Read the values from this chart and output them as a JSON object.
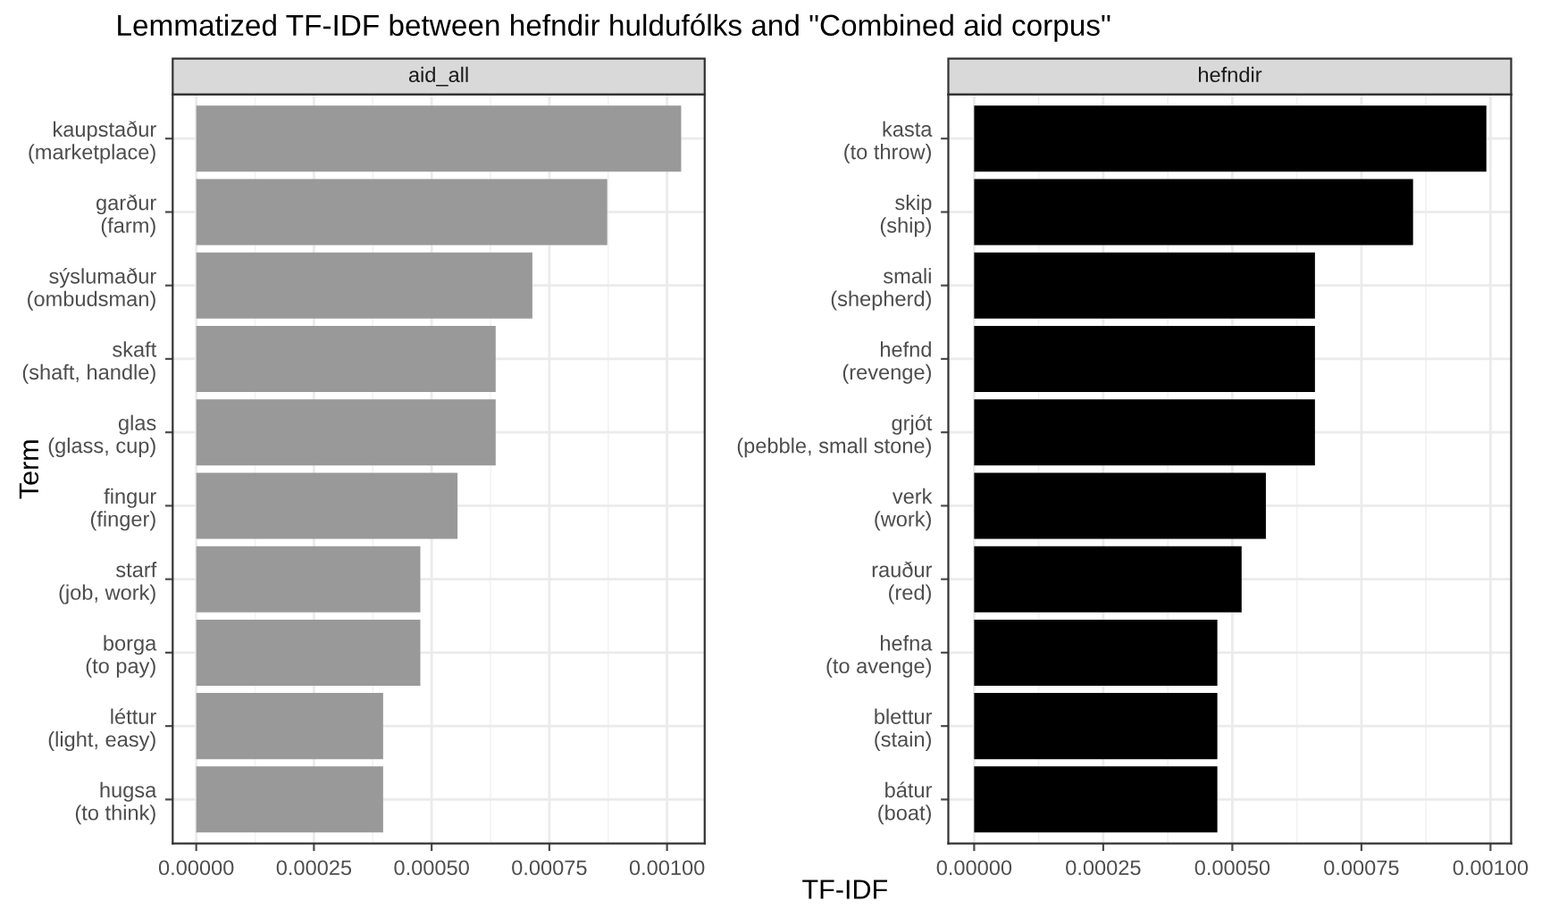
{
  "chart_data": [
    {
      "type": "bar",
      "orientation": "horizontal",
      "title": "aid_all",
      "xlabel": "TF-IDF",
      "ylabel": "Term",
      "annotations": [
        "Lemmatized TF-IDF between hefndir huldufólks and \"Combined aid corpus\""
      ],
      "categories": [
        "kaupstaður\n(marketplace)",
        "garður\n(farm)",
        "sýslumaður\n(ombudsman)",
        "skaft\n(shaft, handle)",
        "glas\n(glass, cup)",
        "fingur\n(finger)",
        "starf\n(job, work)",
        "borga\n(to pay)",
        "léttur\n(light, easy)",
        "hugsa\n(to think)"
      ],
      "values": [
        0.00103,
        0.000873,
        0.000714,
        0.000636,
        0.000636,
        0.000555,
        0.000476,
        0.000476,
        0.000397,
        0.000397
      ],
      "color": "#999999",
      "xlim": [
        -5e-05,
        0.00108
      ],
      "xticks": [
        {
          "value": 0,
          "label": "0.00000"
        },
        {
          "value": 0.00025,
          "label": "0.00025"
        },
        {
          "value": 0.0005,
          "label": "0.00050"
        },
        {
          "value": 0.00075,
          "label": "0.00075"
        },
        {
          "value": 0.001,
          "label": "0.00100"
        }
      ],
      "grid": true
    },
    {
      "type": "bar",
      "orientation": "horizontal",
      "title": "hefndir",
      "categories": [
        "kasta\n(to throw)",
        "skip\n(ship)",
        "smali\n(shepherd)",
        "hefnd\n(revenge)",
        "grjót\n(pebble, small stone)",
        "verk\n(work)",
        "rauður\n(red)",
        "hefna\n(to avenge)",
        "blettur\n(stain)",
        "bátur\n(boat)"
      ],
      "values": [
        0.000992,
        0.00085,
        0.00066,
        0.00066,
        0.00066,
        0.000565,
        0.000518,
        0.000471,
        0.000471,
        0.000471
      ],
      "color": "#000000",
      "xlim": [
        -5e-05,
        0.00104
      ],
      "xticks": [
        {
          "value": 0,
          "label": "0.00000"
        },
        {
          "value": 0.00025,
          "label": "0.00025"
        },
        {
          "value": 0.0005,
          "label": "0.00050"
        },
        {
          "value": 0.00075,
          "label": "0.00075"
        },
        {
          "value": 0.001,
          "label": "0.00100"
        }
      ],
      "grid": true
    }
  ]
}
